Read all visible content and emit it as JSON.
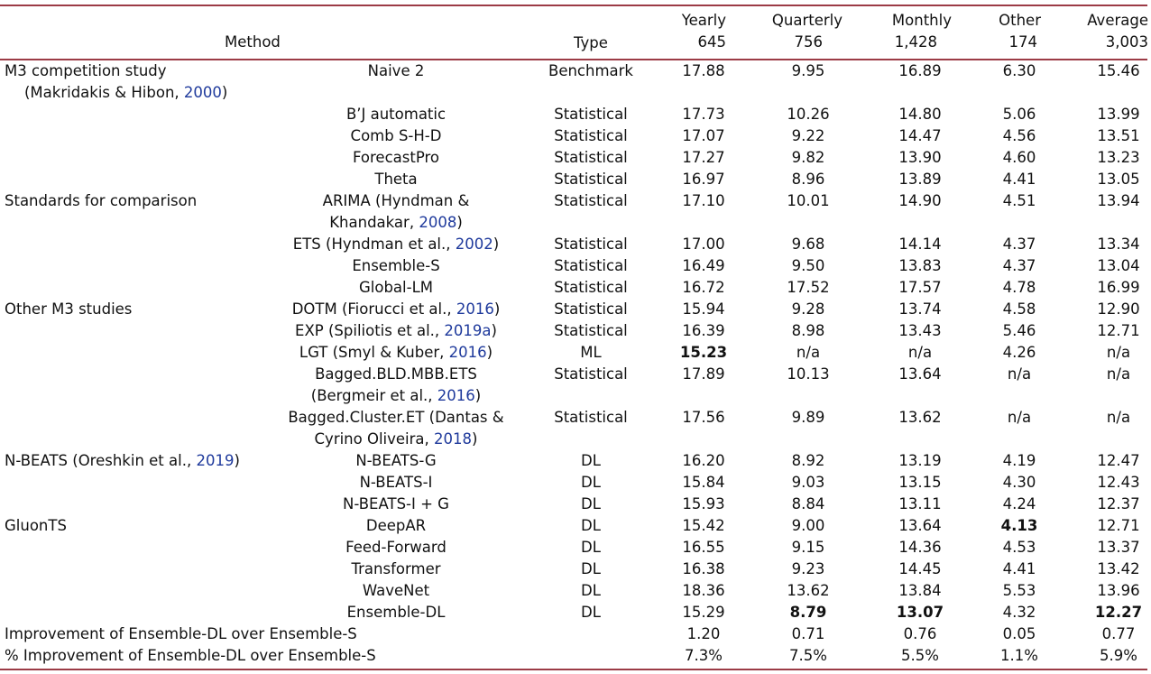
{
  "header": {
    "method": "Method",
    "type": "Type",
    "columns": [
      {
        "name": "Yearly",
        "count": "645"
      },
      {
        "name": "Quarterly",
        "count": "756"
      },
      {
        "name": "Monthly",
        "count": "1,428"
      },
      {
        "name": "Other",
        "count": "174"
      },
      {
        "name": "Average",
        "count": "3,003"
      }
    ]
  },
  "groups": [
    {
      "line1": "M3 competition study",
      "line2_pre": "(Makridakis & Hibon, ",
      "line2_year": "2000",
      "line2_post": ")"
    },
    {
      "line1": "Standards for comparison"
    },
    {
      "line1": "Other M3 studies"
    },
    {
      "line1_pre": "N-BEATS (Oreshkin et al., ",
      "line1_year": "2019",
      "line1_post": ")"
    },
    {
      "line1": "GluonTS"
    }
  ],
  "rows": [
    {
      "m1": "Naive 2",
      "type": "Benchmark",
      "v": [
        "17.88",
        "9.95",
        "16.89",
        "6.30",
        "15.46"
      ]
    },
    {
      "m1": "B’J automatic",
      "type": "Statistical",
      "v": [
        "17.73",
        "10.26",
        "14.80",
        "5.06",
        "13.99"
      ]
    },
    {
      "m1": "Comb S-H-D",
      "type": "Statistical",
      "v": [
        "17.07",
        "9.22",
        "14.47",
        "4.56",
        "13.51"
      ]
    },
    {
      "m1": "ForecastPro",
      "type": "Statistical",
      "v": [
        "17.27",
        "9.82",
        "13.90",
        "4.60",
        "13.23"
      ]
    },
    {
      "m1": "Theta",
      "type": "Statistical",
      "v": [
        "16.97",
        "8.96",
        "13.89",
        "4.41",
        "13.05"
      ]
    },
    {
      "m1": "ARIMA (Hyndman &",
      "m2_pre": "Khandakar, ",
      "m2_year": "2008",
      "m2_post": ")",
      "type": "Statistical",
      "v": [
        "17.10",
        "10.01",
        "14.90",
        "4.51",
        "13.94"
      ]
    },
    {
      "m1_pre": "ETS (Hyndman et al., ",
      "m1_year": "2002",
      "m1_post": ")",
      "type": "Statistical",
      "v": [
        "17.00",
        "9.68",
        "14.14",
        "4.37",
        "13.34"
      ]
    },
    {
      "m1": "Ensemble-S",
      "type": "Statistical",
      "v": [
        "16.49",
        "9.50",
        "13.83",
        "4.37",
        "13.04"
      ]
    },
    {
      "m1": "Global-LM",
      "type": "Statistical",
      "v": [
        "16.72",
        "17.52",
        "17.57",
        "4.78",
        "16.99"
      ]
    },
    {
      "m1_pre": "DOTM (Fiorucci et al., ",
      "m1_year": "2016",
      "m1_post": ")",
      "type": "Statistical",
      "v": [
        "15.94",
        "9.28",
        "13.74",
        "4.58",
        "12.90"
      ]
    },
    {
      "m1_pre": "EXP (Spiliotis et al., ",
      "m1_year": "2019a",
      "m1_post": ")",
      "type": "Statistical",
      "v": [
        "16.39",
        "8.98",
        "13.43",
        "5.46",
        "12.71"
      ]
    },
    {
      "m1_pre": "LGT (Smyl & Kuber, ",
      "m1_year": "2016",
      "m1_post": ")",
      "type": "ML",
      "v": [
        "15.23",
        "n/a",
        "n/a",
        "4.26",
        "n/a"
      ]
    },
    {
      "m1": "Bagged.BLD.MBB.ETS",
      "m2_pre": "(Bergmeir et al., ",
      "m2_year": "2016",
      "m2_post": ")",
      "type": "Statistical",
      "v": [
        "17.89",
        "10.13",
        "13.64",
        "n/a",
        "n/a"
      ]
    },
    {
      "m1": "Bagged.Cluster.ET (Dantas &",
      "m2_pre": "Cyrino Oliveira, ",
      "m2_year": "2018",
      "m2_post": ")",
      "type": "Statistical",
      "v": [
        "17.56",
        "9.89",
        "13.62",
        "n/a",
        "n/a"
      ]
    },
    {
      "m1": "N-BEATS-G",
      "type": "DL",
      "v": [
        "16.20",
        "8.92",
        "13.19",
        "4.19",
        "12.47"
      ]
    },
    {
      "m1": "N-BEATS-I",
      "type": "DL",
      "v": [
        "15.84",
        "9.03",
        "13.15",
        "4.30",
        "12.43"
      ]
    },
    {
      "m1": "N-BEATS-I + G",
      "type": "DL",
      "v": [
        "15.93",
        "8.84",
        "13.11",
        "4.24",
        "12.37"
      ]
    },
    {
      "m1": "DeepAR",
      "type": "DL",
      "v": [
        "15.42",
        "9.00",
        "13.64",
        "4.13",
        "12.71"
      ]
    },
    {
      "m1": "Feed-Forward",
      "type": "DL",
      "v": [
        "16.55",
        "9.15",
        "14.36",
        "4.53",
        "13.37"
      ]
    },
    {
      "m1": "Transformer",
      "type": "DL",
      "v": [
        "16.38",
        "9.23",
        "14.45",
        "4.41",
        "13.42"
      ]
    },
    {
      "m1": "WaveNet",
      "type": "DL",
      "v": [
        "18.36",
        "13.62",
        "13.84",
        "5.53",
        "13.96"
      ]
    },
    {
      "m1": "Ensemble-DL",
      "type": "DL",
      "v": [
        "15.29",
        "8.79",
        "13.07",
        "4.32",
        "12.27"
      ]
    }
  ],
  "summary": [
    {
      "label": "Improvement of Ensemble-DL over Ensemble-S",
      "v": [
        "1.20",
        "0.71",
        "0.76",
        "0.05",
        "0.77"
      ]
    },
    {
      "label": "% Improvement of Ensemble-DL over Ensemble-S",
      "v": [
        "7.3%",
        "7.5%",
        "5.5%",
        "1.1%",
        "5.9%"
      ]
    }
  ],
  "colors": {
    "rule": "#9c3b46",
    "citation": "#1f3a9c",
    "text": "#111111"
  }
}
